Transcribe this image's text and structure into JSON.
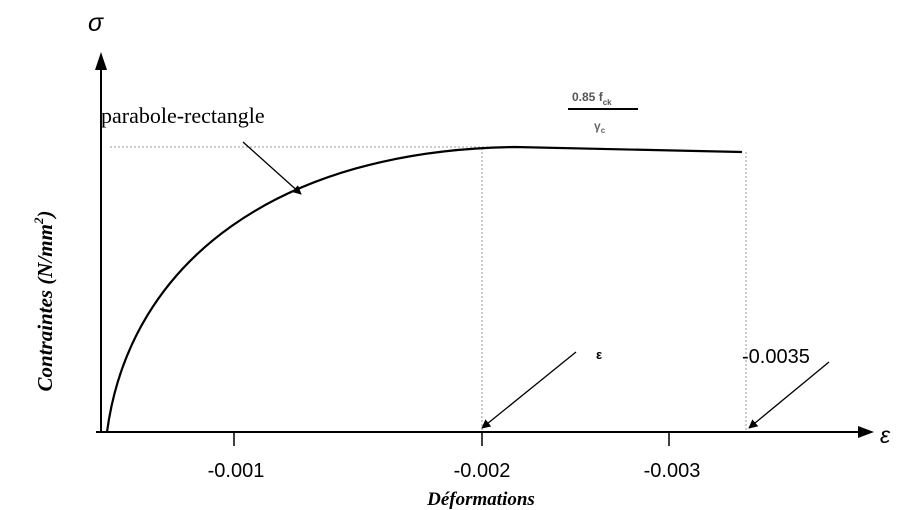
{
  "diagram": {
    "y_axis_symbol": "σ",
    "x_axis_symbol": "ε",
    "y_axis_title": "Contraintes (N/mm",
    "y_axis_title_sup": "2",
    "y_axis_title_close": ")",
    "x_axis_title": "Déformations",
    "curve_label": "parabole-rectangle",
    "plateau_numerator": "0.85 f",
    "plateau_numerator_sub": "ck",
    "plateau_denominator": "γ",
    "plateau_denominator_sub": "c",
    "strain_symbol_label": "ε",
    "ultimate_strain_label": "-0.0035",
    "x_ticks": [
      "-0.001",
      "-0.002",
      "-0.003"
    ],
    "colors": {
      "ink": "#000000",
      "guide": "#9a9a9a"
    }
  }
}
